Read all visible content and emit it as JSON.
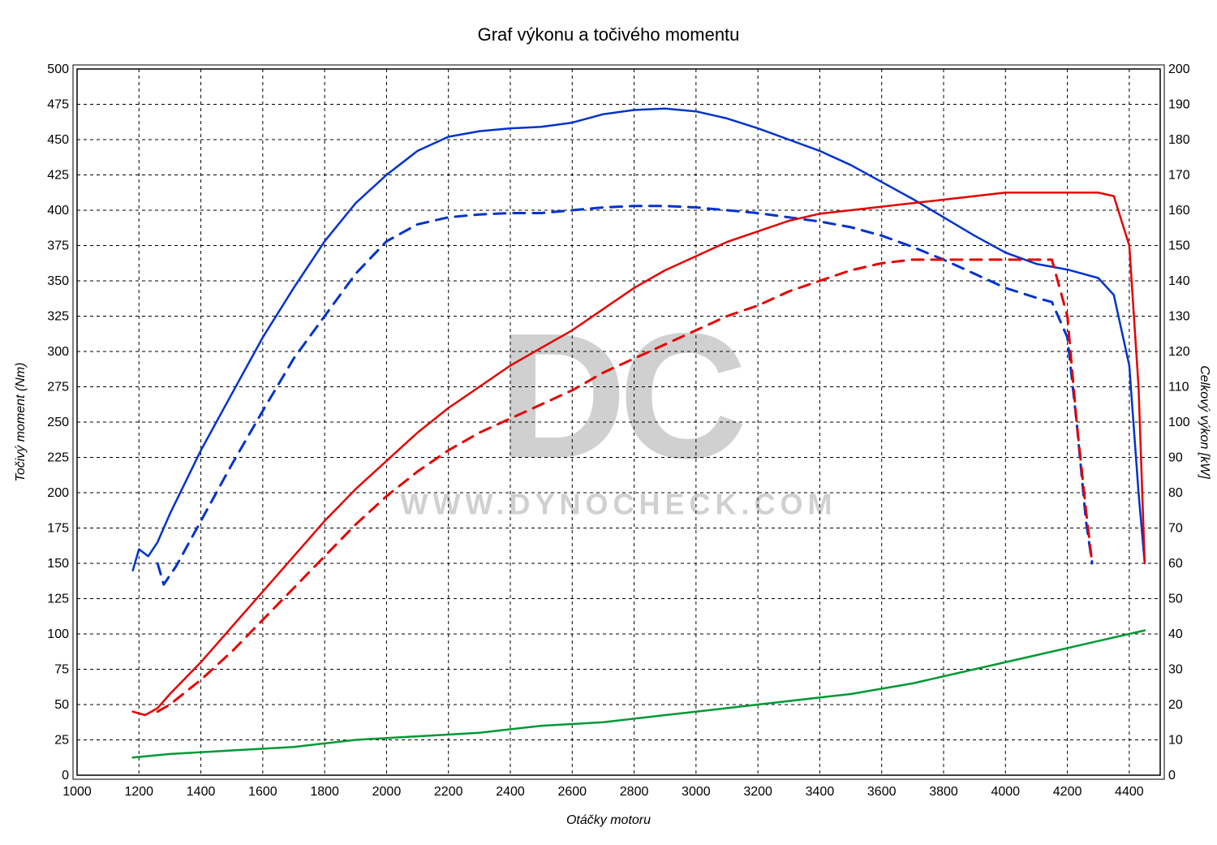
{
  "chart": {
    "type": "line-dual-axis",
    "title": "Graf výkonu a točivého momentu",
    "title_fontsize": 22,
    "background_color": "#ffffff",
    "plot_border_color": "#000000",
    "grid_color": "#000000",
    "grid_dash": "4 4",
    "grid_linewidth": 1,
    "tick_fontsize": 16,
    "axis_title_fontsize": 16,
    "axis_title_fontstyle": "italic",
    "watermark": {
      "big": "DC",
      "url": "WWW.DYNOCHECK.COM",
      "color": "#d0d0d0",
      "big_fontsize": 220,
      "url_fontsize": 36
    },
    "x_axis": {
      "label": "Otáčky motoru",
      "min": 1000,
      "max": 4500,
      "tick_step": 200,
      "ticks": [
        1000,
        1200,
        1400,
        1600,
        1800,
        2000,
        2200,
        2400,
        2600,
        2800,
        3000,
        3200,
        3400,
        3600,
        3800,
        4000,
        4200,
        4400
      ]
    },
    "y_left": {
      "label": "Točivý moment (Nm)",
      "min": 0,
      "max": 500,
      "tick_step": 25,
      "ticks": [
        0,
        25,
        50,
        75,
        100,
        125,
        150,
        175,
        200,
        225,
        250,
        275,
        300,
        325,
        350,
        375,
        400,
        425,
        450,
        475,
        500
      ]
    },
    "y_right": {
      "label": "Celkový výkon [kW]",
      "min": 0,
      "max": 200,
      "tick_step": 10,
      "ticks": [
        0,
        10,
        20,
        30,
        40,
        50,
        60,
        70,
        80,
        90,
        100,
        110,
        120,
        130,
        140,
        150,
        160,
        170,
        180,
        190,
        200
      ]
    },
    "line_width_solid": 2.5,
    "line_width_dashed": 3,
    "dash_pattern": "14 10",
    "series": [
      {
        "name": "torque_tuned",
        "axis": "left",
        "color": "#0033cc",
        "dash": "none",
        "data": [
          [
            1180,
            145
          ],
          [
            1200,
            160
          ],
          [
            1230,
            155
          ],
          [
            1260,
            165
          ],
          [
            1300,
            185
          ],
          [
            1400,
            230
          ],
          [
            1500,
            270
          ],
          [
            1600,
            310
          ],
          [
            1700,
            345
          ],
          [
            1800,
            378
          ],
          [
            1900,
            405
          ],
          [
            2000,
            425
          ],
          [
            2100,
            442
          ],
          [
            2200,
            452
          ],
          [
            2300,
            456
          ],
          [
            2400,
            458
          ],
          [
            2500,
            459
          ],
          [
            2600,
            462
          ],
          [
            2700,
            468
          ],
          [
            2800,
            471
          ],
          [
            2900,
            472
          ],
          [
            3000,
            470
          ],
          [
            3100,
            465
          ],
          [
            3200,
            458
          ],
          [
            3300,
            450
          ],
          [
            3400,
            442
          ],
          [
            3500,
            432
          ],
          [
            3600,
            420
          ],
          [
            3700,
            408
          ],
          [
            3800,
            395
          ],
          [
            3900,
            382
          ],
          [
            4000,
            370
          ],
          [
            4100,
            362
          ],
          [
            4200,
            358
          ],
          [
            4300,
            352
          ],
          [
            4350,
            340
          ],
          [
            4400,
            290
          ],
          [
            4430,
            200
          ],
          [
            4450,
            150
          ]
        ]
      },
      {
        "name": "torque_stock",
        "axis": "left",
        "color": "#0033cc",
        "dash": "dashed",
        "data": [
          [
            1260,
            150
          ],
          [
            1280,
            135
          ],
          [
            1320,
            148
          ],
          [
            1400,
            180
          ],
          [
            1500,
            220
          ],
          [
            1600,
            258
          ],
          [
            1700,
            295
          ],
          [
            1800,
            325
          ],
          [
            1900,
            355
          ],
          [
            2000,
            378
          ],
          [
            2100,
            390
          ],
          [
            2200,
            395
          ],
          [
            2300,
            397
          ],
          [
            2400,
            398
          ],
          [
            2500,
            398
          ],
          [
            2600,
            400
          ],
          [
            2700,
            402
          ],
          [
            2800,
            403
          ],
          [
            2900,
            403
          ],
          [
            3000,
            402
          ],
          [
            3100,
            400
          ],
          [
            3200,
            398
          ],
          [
            3300,
            395
          ],
          [
            3400,
            392
          ],
          [
            3500,
            388
          ],
          [
            3600,
            382
          ],
          [
            3700,
            374
          ],
          [
            3800,
            365
          ],
          [
            3900,
            355
          ],
          [
            4000,
            345
          ],
          [
            4100,
            338
          ],
          [
            4150,
            335
          ],
          [
            4200,
            310
          ],
          [
            4230,
            250
          ],
          [
            4260,
            180
          ],
          [
            4280,
            150
          ]
        ]
      },
      {
        "name": "power_tuned",
        "axis": "right",
        "color": "#e60000",
        "dash": "none",
        "data": [
          [
            1180,
            18
          ],
          [
            1220,
            17
          ],
          [
            1260,
            19
          ],
          [
            1300,
            23
          ],
          [
            1400,
            32
          ],
          [
            1500,
            42
          ],
          [
            1600,
            52
          ],
          [
            1700,
            62
          ],
          [
            1800,
            72
          ],
          [
            1900,
            81
          ],
          [
            2000,
            89
          ],
          [
            2100,
            97
          ],
          [
            2200,
            104
          ],
          [
            2300,
            110
          ],
          [
            2400,
            116
          ],
          [
            2500,
            121
          ],
          [
            2600,
            126
          ],
          [
            2700,
            132
          ],
          [
            2800,
            138
          ],
          [
            2900,
            143
          ],
          [
            3000,
            147
          ],
          [
            3100,
            151
          ],
          [
            3200,
            154
          ],
          [
            3300,
            157
          ],
          [
            3400,
            159
          ],
          [
            3500,
            160
          ],
          [
            3600,
            161
          ],
          [
            3700,
            162
          ],
          [
            3800,
            163
          ],
          [
            3900,
            164
          ],
          [
            4000,
            165
          ],
          [
            4100,
            165
          ],
          [
            4200,
            165
          ],
          [
            4300,
            165
          ],
          [
            4350,
            164
          ],
          [
            4400,
            150
          ],
          [
            4430,
            110
          ],
          [
            4450,
            60
          ]
        ]
      },
      {
        "name": "power_stock",
        "axis": "right",
        "color": "#e60000",
        "dash": "dashed",
        "data": [
          [
            1260,
            18
          ],
          [
            1300,
            20
          ],
          [
            1400,
            27
          ],
          [
            1500,
            35
          ],
          [
            1600,
            44
          ],
          [
            1700,
            53
          ],
          [
            1800,
            62
          ],
          [
            1900,
            71
          ],
          [
            2000,
            79
          ],
          [
            2100,
            86
          ],
          [
            2200,
            92
          ],
          [
            2300,
            97
          ],
          [
            2400,
            101
          ],
          [
            2500,
            105
          ],
          [
            2600,
            109
          ],
          [
            2700,
            114
          ],
          [
            2800,
            118
          ],
          [
            2900,
            122
          ],
          [
            3000,
            126
          ],
          [
            3100,
            130
          ],
          [
            3200,
            133
          ],
          [
            3300,
            137
          ],
          [
            3400,
            140
          ],
          [
            3500,
            143
          ],
          [
            3600,
            145
          ],
          [
            3700,
            146
          ],
          [
            3800,
            146
          ],
          [
            3900,
            146
          ],
          [
            4000,
            146
          ],
          [
            4100,
            146
          ],
          [
            4150,
            146
          ],
          [
            4200,
            130
          ],
          [
            4230,
            100
          ],
          [
            4260,
            75
          ],
          [
            4280,
            60
          ]
        ]
      },
      {
        "name": "loss_power",
        "axis": "right",
        "color": "#009933",
        "dash": "none",
        "data": [
          [
            1180,
            5
          ],
          [
            1300,
            6
          ],
          [
            1500,
            7
          ],
          [
            1700,
            8
          ],
          [
            1900,
            10
          ],
          [
            2100,
            11
          ],
          [
            2300,
            12
          ],
          [
            2500,
            14
          ],
          [
            2700,
            15
          ],
          [
            2900,
            17
          ],
          [
            3100,
            19
          ],
          [
            3300,
            21
          ],
          [
            3500,
            23
          ],
          [
            3700,
            26
          ],
          [
            3900,
            30
          ],
          [
            4100,
            34
          ],
          [
            4300,
            38
          ],
          [
            4450,
            41
          ]
        ]
      }
    ]
  },
  "labels": {
    "chart_title": "Graf výkonu a točivého momentu",
    "x_axis": "Otáčky motoru",
    "y_left": "Točivý moment (Nm)",
    "y_right": "Celkový výkon [kW]",
    "watermark_big": "DC",
    "watermark_url": "WWW.DYNOCHECK.COM"
  }
}
